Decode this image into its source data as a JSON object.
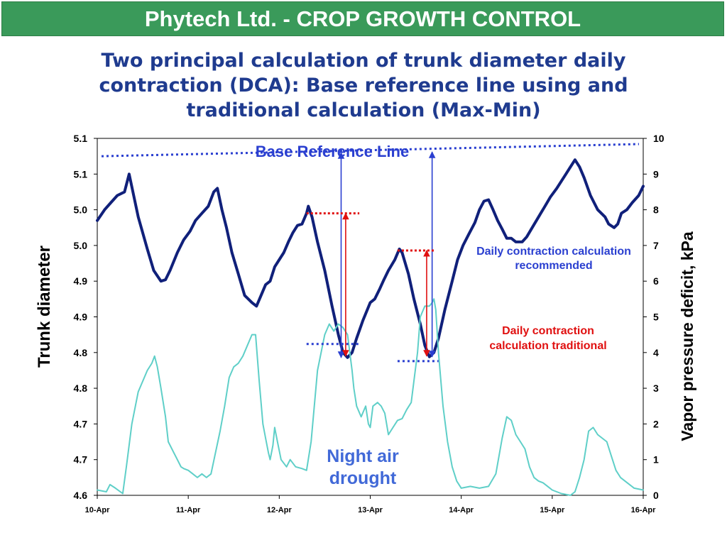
{
  "header": {
    "banner": "Phytech Ltd. - CROP GROWTH CONTROL"
  },
  "slide": {
    "title": "Two principal calculation of trunk diameter daily contraction (DCA): Base reference line using and traditional calculation (Max-Min)"
  },
  "colors": {
    "banner_bg": "#3a9a5a",
    "title": "#1f3b8f",
    "trunk_series": "#10207a",
    "vpd_series": "#5fcfc8",
    "base_line": "#2a3fd0",
    "traditional": "#e01010",
    "recommended_label": "#2a3fd0"
  },
  "chart_data": {
    "type": "line",
    "x_ticks": [
      "10-Apr",
      "11-Apr",
      "12-Apr",
      "13-Apr",
      "14-Apr",
      "15-Apr",
      "16-Apr"
    ],
    "y_left_ticks": [
      "4.6",
      "4.7",
      "4.7",
      "4.8",
      "4.8",
      "4.9",
      "4.9",
      "5.0",
      "5.0",
      "5.1",
      "5.1"
    ],
    "y_right_ticks": [
      "0",
      "1",
      "2",
      "3",
      "4",
      "5",
      "6",
      "7",
      "8",
      "9",
      "10"
    ],
    "ylabel": "Trunk diameter",
    "ylabel_right": "Vapor pressure deficit, kPa",
    "xlim": [
      0,
      6
    ],
    "ylim_left": [
      4.6,
      5.1
    ],
    "ylim_right": [
      0,
      10
    ],
    "grid": false,
    "series": [
      {
        "axis": "left",
        "points": [
          [
            0.0,
            4.985
          ],
          [
            0.08,
            5.0
          ],
          [
            0.15,
            5.01
          ],
          [
            0.22,
            5.02
          ],
          [
            0.3,
            5.025
          ],
          [
            0.35,
            5.05
          ],
          [
            0.4,
            5.02
          ],
          [
            0.45,
            4.99
          ],
          [
            0.55,
            4.945
          ],
          [
            0.62,
            4.915
          ],
          [
            0.7,
            4.9
          ],
          [
            0.75,
            4.902
          ],
          [
            0.8,
            4.915
          ],
          [
            0.88,
            4.94
          ],
          [
            0.95,
            4.958
          ],
          [
            1.02,
            4.97
          ],
          [
            1.08,
            4.985
          ],
          [
            1.15,
            4.995
          ],
          [
            1.22,
            5.005
          ],
          [
            1.28,
            5.025
          ],
          [
            1.32,
            5.03
          ],
          [
            1.37,
            5.0
          ],
          [
            1.42,
            4.975
          ],
          [
            1.48,
            4.94
          ],
          [
            1.55,
            4.91
          ],
          [
            1.62,
            4.88
          ],
          [
            1.7,
            4.87
          ],
          [
            1.75,
            4.865
          ],
          [
            1.8,
            4.88
          ],
          [
            1.85,
            4.895
          ],
          [
            1.9,
            4.9
          ],
          [
            1.95,
            4.92
          ],
          [
            2.0,
            4.93
          ],
          [
            2.05,
            4.94
          ],
          [
            2.1,
            4.955
          ],
          [
            2.15,
            4.968
          ],
          [
            2.2,
            4.978
          ],
          [
            2.25,
            4.98
          ],
          [
            2.3,
            4.995
          ],
          [
            2.32,
            5.005
          ],
          [
            2.36,
            4.99
          ],
          [
            2.42,
            4.955
          ],
          [
            2.5,
            4.915
          ],
          [
            2.58,
            4.865
          ],
          [
            2.65,
            4.825
          ],
          [
            2.7,
            4.8
          ],
          [
            2.75,
            4.793
          ],
          [
            2.8,
            4.8
          ],
          [
            2.85,
            4.82
          ],
          [
            2.92,
            4.845
          ],
          [
            3.0,
            4.87
          ],
          [
            3.05,
            4.875
          ],
          [
            3.1,
            4.888
          ],
          [
            3.15,
            4.902
          ],
          [
            3.2,
            4.915
          ],
          [
            3.27,
            4.93
          ],
          [
            3.32,
            4.945
          ],
          [
            3.35,
            4.94
          ],
          [
            3.42,
            4.91
          ],
          [
            3.48,
            4.875
          ],
          [
            3.55,
            4.84
          ],
          [
            3.6,
            4.81
          ],
          [
            3.65,
            4.794
          ],
          [
            3.7,
            4.8
          ],
          [
            3.75,
            4.82
          ],
          [
            3.82,
            4.86
          ],
          [
            3.9,
            4.9
          ],
          [
            3.96,
            4.93
          ],
          [
            4.02,
            4.95
          ],
          [
            4.08,
            4.965
          ],
          [
            4.15,
            4.982
          ],
          [
            4.2,
            5.0
          ],
          [
            4.25,
            5.012
          ],
          [
            4.3,
            5.014
          ],
          [
            4.35,
            5.0
          ],
          [
            4.4,
            4.985
          ],
          [
            4.45,
            4.973
          ],
          [
            4.5,
            4.96
          ],
          [
            4.55,
            4.96
          ],
          [
            4.6,
            4.955
          ],
          [
            4.67,
            4.955
          ],
          [
            4.72,
            4.962
          ],
          [
            4.78,
            4.975
          ],
          [
            4.85,
            4.99
          ],
          [
            4.92,
            5.005
          ],
          [
            4.98,
            5.018
          ],
          [
            5.05,
            5.03
          ],
          [
            5.1,
            5.04
          ],
          [
            5.15,
            5.05
          ],
          [
            5.2,
            5.06
          ],
          [
            5.25,
            5.07
          ],
          [
            5.3,
            5.06
          ],
          [
            5.35,
            5.045
          ],
          [
            5.42,
            5.02
          ],
          [
            5.5,
            5.0
          ],
          [
            5.58,
            4.99
          ],
          [
            5.62,
            4.98
          ],
          [
            5.68,
            4.975
          ],
          [
            5.72,
            4.98
          ],
          [
            5.76,
            4.995
          ],
          [
            5.82,
            5.0
          ],
          [
            5.88,
            5.01
          ],
          [
            5.95,
            5.02
          ],
          [
            6.0,
            5.033
          ]
        ]
      },
      {
        "axis": "right",
        "points": [
          [
            0.0,
            0.15
          ],
          [
            0.1,
            0.1
          ],
          [
            0.14,
            0.3
          ],
          [
            0.2,
            0.2
          ],
          [
            0.28,
            0.05
          ],
          [
            0.32,
            0.8
          ],
          [
            0.38,
            2.0
          ],
          [
            0.45,
            2.9
          ],
          [
            0.55,
            3.5
          ],
          [
            0.6,
            3.7
          ],
          [
            0.63,
            3.9
          ],
          [
            0.66,
            3.6
          ],
          [
            0.7,
            3.0
          ],
          [
            0.75,
            2.2
          ],
          [
            0.78,
            1.5
          ],
          [
            0.82,
            1.3
          ],
          [
            0.88,
            1.0
          ],
          [
            0.92,
            0.8
          ],
          [
            0.95,
            0.75
          ],
          [
            1.0,
            0.7
          ],
          [
            1.05,
            0.6
          ],
          [
            1.1,
            0.5
          ],
          [
            1.15,
            0.6
          ],
          [
            1.2,
            0.5
          ],
          [
            1.25,
            0.6
          ],
          [
            1.3,
            1.2
          ],
          [
            1.35,
            1.8
          ],
          [
            1.4,
            2.5
          ],
          [
            1.45,
            3.3
          ],
          [
            1.5,
            3.6
          ],
          [
            1.55,
            3.7
          ],
          [
            1.6,
            3.9
          ],
          [
            1.65,
            4.2
          ],
          [
            1.7,
            4.5
          ],
          [
            1.74,
            4.5
          ],
          [
            1.78,
            3.2
          ],
          [
            1.82,
            2.0
          ],
          [
            1.85,
            1.6
          ],
          [
            1.88,
            1.2
          ],
          [
            1.9,
            1.0
          ],
          [
            1.93,
            1.4
          ],
          [
            1.95,
            1.9
          ],
          [
            1.98,
            1.5
          ],
          [
            2.02,
            1.0
          ],
          [
            2.08,
            0.8
          ],
          [
            2.12,
            1.0
          ],
          [
            2.18,
            0.8
          ],
          [
            2.25,
            0.75
          ],
          [
            2.3,
            0.7
          ],
          [
            2.35,
            1.5
          ],
          [
            2.42,
            3.5
          ],
          [
            2.5,
            4.5
          ],
          [
            2.55,
            4.8
          ],
          [
            2.6,
            4.6
          ],
          [
            2.65,
            4.8
          ],
          [
            2.7,
            4.7
          ],
          [
            2.75,
            4.5
          ],
          [
            2.8,
            3.5
          ],
          [
            2.82,
            3.0
          ],
          [
            2.85,
            2.5
          ],
          [
            2.9,
            2.2
          ],
          [
            2.95,
            2.5
          ],
          [
            2.98,
            2.0
          ],
          [
            3.0,
            1.9
          ],
          [
            3.03,
            2.5
          ],
          [
            3.08,
            2.6
          ],
          [
            3.12,
            2.5
          ],
          [
            3.16,
            2.3
          ],
          [
            3.2,
            1.7
          ],
          [
            3.25,
            1.9
          ],
          [
            3.3,
            2.1
          ],
          [
            3.35,
            2.15
          ],
          [
            3.4,
            2.4
          ],
          [
            3.45,
            2.6
          ],
          [
            3.48,
            3.2
          ],
          [
            3.52,
            4.0
          ],
          [
            3.55,
            5.0
          ],
          [
            3.6,
            5.3
          ],
          [
            3.65,
            5.3
          ],
          [
            3.68,
            5.4
          ],
          [
            3.7,
            5.5
          ],
          [
            3.72,
            5.2
          ],
          [
            3.75,
            4.0
          ],
          [
            3.8,
            2.5
          ],
          [
            3.85,
            1.5
          ],
          [
            3.9,
            0.8
          ],
          [
            3.95,
            0.4
          ],
          [
            4.0,
            0.2
          ],
          [
            4.1,
            0.25
          ],
          [
            4.2,
            0.2
          ],
          [
            4.3,
            0.25
          ],
          [
            4.38,
            0.6
          ],
          [
            4.45,
            1.6
          ],
          [
            4.5,
            2.2
          ],
          [
            4.55,
            2.1
          ],
          [
            4.6,
            1.7
          ],
          [
            4.65,
            1.5
          ],
          [
            4.7,
            1.3
          ],
          [
            4.75,
            0.8
          ],
          [
            4.8,
            0.5
          ],
          [
            4.85,
            0.4
          ],
          [
            4.9,
            0.35
          ],
          [
            4.95,
            0.25
          ],
          [
            5.0,
            0.15
          ],
          [
            5.1,
            0.05
          ],
          [
            5.2,
            0.0
          ],
          [
            5.25,
            0.1
          ],
          [
            5.3,
            0.5
          ],
          [
            5.35,
            1.0
          ],
          [
            5.4,
            1.8
          ],
          [
            5.45,
            1.9
          ],
          [
            5.5,
            1.7
          ],
          [
            5.55,
            1.6
          ],
          [
            5.6,
            1.5
          ],
          [
            5.65,
            1.1
          ],
          [
            5.7,
            0.7
          ],
          [
            5.75,
            0.5
          ],
          [
            5.8,
            0.4
          ],
          [
            5.85,
            0.3
          ],
          [
            5.9,
            0.2
          ],
          [
            6.0,
            0.15
          ]
        ]
      }
    ],
    "annotations": {
      "base_reference": {
        "label": "Base Reference Line",
        "from": [
          0.0,
          5.075
        ],
        "to": [
          6.0,
          5.092
        ]
      },
      "recommended": {
        "label_line1": "Daily contraction calculation",
        "label_line2": "recommended",
        "arrows": [
          {
            "x": 2.68,
            "y_top": 5.08,
            "y_bottom": 4.793
          },
          {
            "x": 3.68,
            "y_top": 5.081,
            "y_bottom": 4.794
          }
        ],
        "low_marks": [
          {
            "x_start": 2.3,
            "x_end": 2.88,
            "y": 4.812
          },
          {
            "x_start": 3.3,
            "x_end": 3.75,
            "y": 4.788
          }
        ]
      },
      "traditional": {
        "label_line1": "Daily contraction",
        "label_line2": "calculation traditional",
        "arrows": [
          {
            "x": 2.73,
            "y_top": 4.995,
            "y_bottom": 4.795
          },
          {
            "x": 3.62,
            "y_top": 4.943,
            "y_bottom": 4.795
          }
        ],
        "high_marks": [
          {
            "x_start": 2.3,
            "x_end": 2.88,
            "y": 4.995
          },
          {
            "x_start": 3.3,
            "x_end": 3.72,
            "y": 4.943
          }
        ]
      },
      "night_air": {
        "label_line1": "Night air",
        "label_line2": "drought"
      }
    }
  }
}
